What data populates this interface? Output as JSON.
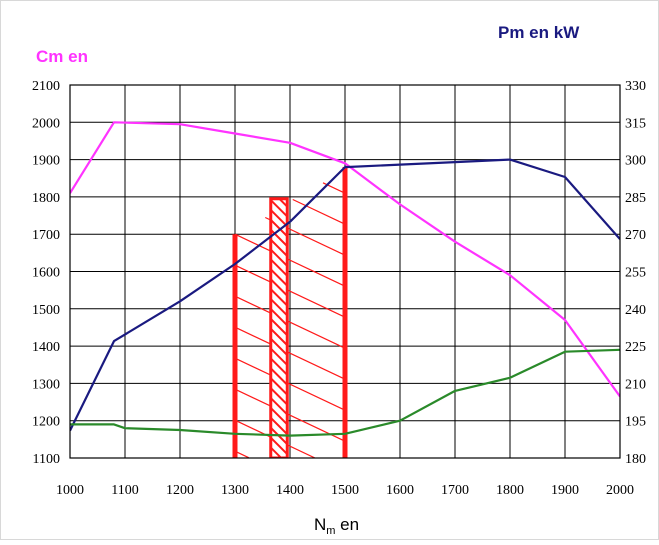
{
  "chart_data": {
    "type": "line",
    "left_axis_title": "Cm en",
    "right_axis_title": "Pm en kW",
    "xlabel_main": "N",
    "xlabel_sub": "m",
    "xlabel_suffix": " en",
    "x_ticks": [
      1000,
      1100,
      1200,
      1300,
      1400,
      1500,
      1600,
      1700,
      1800,
      1900,
      2000
    ],
    "y_left_ticks": [
      1100,
      1200,
      1300,
      1400,
      1500,
      1600,
      1700,
      1800,
      1900,
      2000,
      2100
    ],
    "y_right_ticks": [
      180,
      195,
      210,
      225,
      240,
      255,
      270,
      285,
      300,
      315,
      330
    ],
    "xlim": [
      1000,
      2000
    ],
    "ylim_left": [
      1100,
      2100
    ],
    "ylim_right": [
      180,
      330
    ],
    "grid": true,
    "colors": {
      "torque": "#ff33ff",
      "power": "#1a1a80",
      "green": "#2a8a2a",
      "band": "#ff1a1a",
      "left_title": "#ff33ff",
      "right_title": "#1a1a80"
    },
    "series": [
      {
        "key": "torque",
        "axis": "left",
        "x": [
          1000,
          1080,
          1200,
          1300,
          1400,
          1500,
          1600,
          1700,
          1800,
          1900,
          2000
        ],
        "y": [
          1810,
          2000,
          1995,
          1970,
          1945,
          1890,
          1780,
          1680,
          1590,
          1470,
          1265
        ]
      },
      {
        "key": "power",
        "axis": "right",
        "x": [
          1000,
          1080,
          1200,
          1300,
          1400,
          1500,
          1600,
          1700,
          1800,
          1900,
          2000
        ],
        "y": [
          191,
          227,
          243,
          258,
          275,
          297,
          298,
          299,
          300,
          293,
          268
        ]
      },
      {
        "key": "green",
        "axis": "left",
        "x": [
          1000,
          1080,
          1100,
          1200,
          1300,
          1400,
          1500,
          1600,
          1700,
          1800,
          1900,
          2000
        ],
        "y": [
          1190,
          1190,
          1180,
          1175,
          1165,
          1160,
          1165,
          1200,
          1280,
          1315,
          1385,
          1390
        ]
      }
    ],
    "highlight_band": {
      "x_from": 1300,
      "x_to": 1500,
      "inner_x_from": 1365,
      "inner_x_to": 1395,
      "y_bottom": 1100,
      "y_top_left": 1700,
      "y_top_right": 1880,
      "inner_y_top": 1795
    }
  }
}
